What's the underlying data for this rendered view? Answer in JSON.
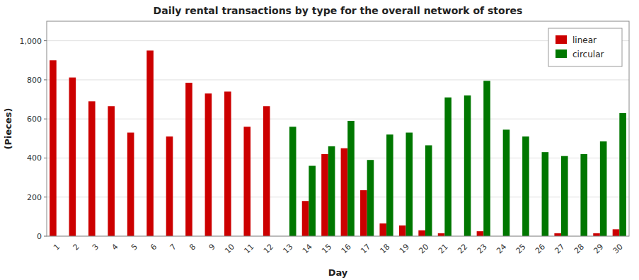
{
  "chart_data": {
    "type": "bar",
    "title": "Daily rental transactions by type for the overall network of stores",
    "xlabel": "Day",
    "ylabel": "(Pieces)",
    "categories": [
      "1",
      "2",
      "3",
      "4",
      "5",
      "6",
      "7",
      "8",
      "9",
      "10",
      "11",
      "12",
      "13",
      "14",
      "15",
      "16",
      "17",
      "18",
      "19",
      "20",
      "21",
      "22",
      "23",
      "24",
      "25",
      "26",
      "27",
      "28",
      "29",
      "30"
    ],
    "series": [
      {
        "name": "linear",
        "color": "#cc0000",
        "values": [
          900,
          812,
          690,
          665,
          530,
          950,
          510,
          785,
          730,
          740,
          560,
          665,
          0,
          180,
          420,
          450,
          235,
          65,
          55,
          30,
          15,
          0,
          25,
          0,
          0,
          0,
          15,
          0,
          15,
          35
        ]
      },
      {
        "name": "circular",
        "color": "#007700",
        "values": [
          0,
          0,
          0,
          0,
          0,
          0,
          0,
          0,
          0,
          0,
          0,
          0,
          560,
          360,
          460,
          590,
          390,
          520,
          530,
          465,
          710,
          720,
          795,
          545,
          510,
          430,
          410,
          420,
          485,
          630
        ]
      }
    ],
    "ylim": [
      0,
      1100
    ],
    "yticks": [
      0,
      200,
      400,
      600,
      800,
      {
        "value": 1000,
        "label": "1,000"
      }
    ],
    "grid": true,
    "legend": "upper right"
  }
}
